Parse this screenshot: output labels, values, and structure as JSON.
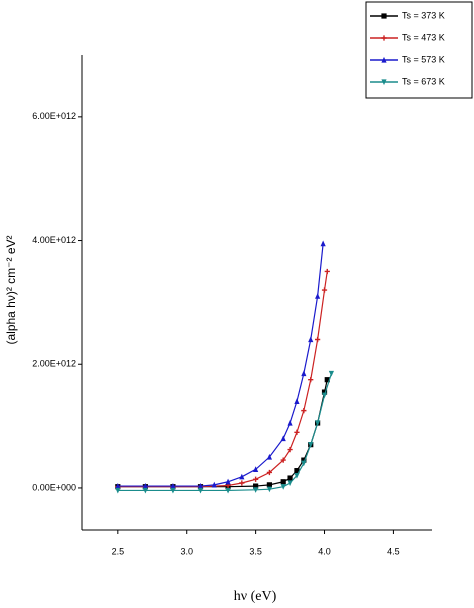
{
  "chart_data": {
    "type": "line",
    "x_label": "hν (eV)",
    "y_label": "(alpha hν)² cm⁻² eV²",
    "xlim": [
      2.24,
      4.78
    ],
    "ylim": [
      -680000000000.0,
      7000000000000.0
    ],
    "xticks": [
      2.5,
      {
        "value": 3,
        "label": "3.0"
      },
      3.5,
      {
        "value": 4,
        "label": "4.0"
      },
      4.5
    ],
    "yticks": [
      {
        "value": 0,
        "label": "0.00E+000"
      },
      {
        "value": 2000000000000.0,
        "label": "2.00E+012"
      },
      {
        "value": 4000000000000.0,
        "label": "4.00E+012"
      },
      {
        "value": 6000000000000.0,
        "label": "6.00E+012"
      }
    ],
    "legend_position": "upper-right",
    "series": [
      {
        "name": "Ts = 373 K",
        "color": "#000000",
        "marker": "square",
        "x": [
          2.5,
          2.7,
          2.9,
          3.1,
          3.3,
          3.5,
          3.6,
          3.7,
          3.75,
          3.8,
          3.85,
          3.9,
          3.95,
          4.0,
          4.02
        ],
        "values": [
          20000000000.0,
          20000000000.0,
          20000000000.0,
          20000000000.0,
          20000000000.0,
          30000000000.0,
          50000000000.0,
          100000000000.0,
          160000000000.0,
          280000000000.0,
          450000000000.0,
          700000000000.0,
          1050000000000.0,
          1550000000000.0,
          1750000000000.0
        ]
      },
      {
        "name": "Ts = 473 K",
        "color": "#cc2222",
        "marker": "plus",
        "x": [
          2.5,
          2.7,
          2.9,
          3.1,
          3.3,
          3.4,
          3.5,
          3.6,
          3.7,
          3.75,
          3.8,
          3.85,
          3.9,
          3.95,
          4.0,
          4.02
        ],
        "values": [
          20000000000.0,
          20000000000.0,
          20000000000.0,
          20000000000.0,
          40000000000.0,
          80000000000.0,
          140000000000.0,
          250000000000.0,
          450000000000.0,
          620000000000.0,
          900000000000.0,
          1250000000000.0,
          1750000000000.0,
          2400000000000.0,
          3200000000000.0,
          3500000000000.0
        ]
      },
      {
        "name": "Ts = 573 K",
        "color": "#1a1acc",
        "marker": "triangle-up",
        "x": [
          2.5,
          2.7,
          2.9,
          3.1,
          3.2,
          3.3,
          3.4,
          3.5,
          3.6,
          3.7,
          3.75,
          3.8,
          3.85,
          3.9,
          3.95,
          3.99
        ],
        "values": [
          30000000000.0,
          30000000000.0,
          30000000000.0,
          30000000000.0,
          50000000000.0,
          100000000000.0,
          180000000000.0,
          300000000000.0,
          500000000000.0,
          800000000000.0,
          1050000000000.0,
          1400000000000.0,
          1850000000000.0,
          2400000000000.0,
          3100000000000.0,
          3950000000000.0
        ]
      },
      {
        "name": "Ts = 673 K",
        "color": "#1a8c8c",
        "marker": "triangle-down",
        "x": [
          2.5,
          2.7,
          2.9,
          3.1,
          3.3,
          3.5,
          3.6,
          3.7,
          3.75,
          3.8,
          3.85,
          3.9,
          3.95,
          4.0,
          4.05
        ],
        "values": [
          -40000000000.0,
          -40000000000.0,
          -40000000000.0,
          -40000000000.0,
          -40000000000.0,
          -30000000000.0,
          -20000000000.0,
          20000000000.0,
          80000000000.0,
          200000000000.0,
          400000000000.0,
          700000000000.0,
          1050000000000.0,
          1500000000000.0,
          1850000000000.0
        ]
      }
    ]
  }
}
